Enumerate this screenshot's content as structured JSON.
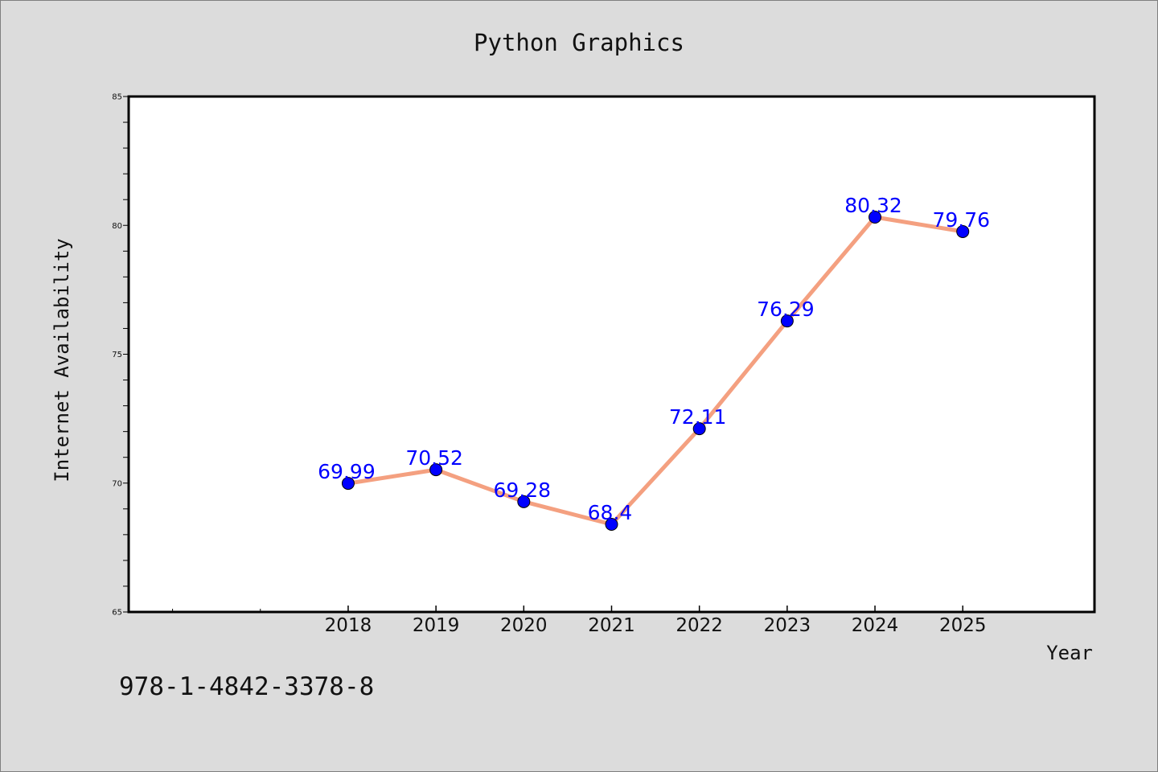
{
  "chart_data": {
    "type": "line",
    "title": "Python Graphics",
    "xlabel": "Year",
    "ylabel": "Internet Availability",
    "categories": [
      "2018",
      "2019",
      "2020",
      "2021",
      "2022",
      "2023",
      "2024",
      "2025"
    ],
    "x": [
      2018,
      2019,
      2020,
      2021,
      2022,
      2023,
      2024,
      2025
    ],
    "values": [
      69.99,
      70.52,
      69.28,
      68.4,
      72.11,
      76.29,
      80.32,
      79.76
    ],
    "data_labels": [
      "69.99",
      "70.52",
      "69.28",
      "68.4",
      "72.11",
      "76.29",
      "80.32",
      "79.76"
    ],
    "xlim": [
      2015.5,
      2026.5
    ],
    "ylim": [
      65,
      85
    ],
    "yticks": [
      "65",
      "70",
      "75",
      "80",
      "85"
    ],
    "y_minor_step": 1,
    "extra_x_minor_ticks": [
      2016,
      2017
    ],
    "grid": false,
    "line_color": "#f4a080",
    "marker_color": "#0000ff",
    "label_color": "#0000ff"
  },
  "footnote": "978-1-4842-3378-8",
  "colors": {
    "background": "#dcdcdc",
    "plot_background": "#ffffff",
    "axis": "#000000"
  }
}
